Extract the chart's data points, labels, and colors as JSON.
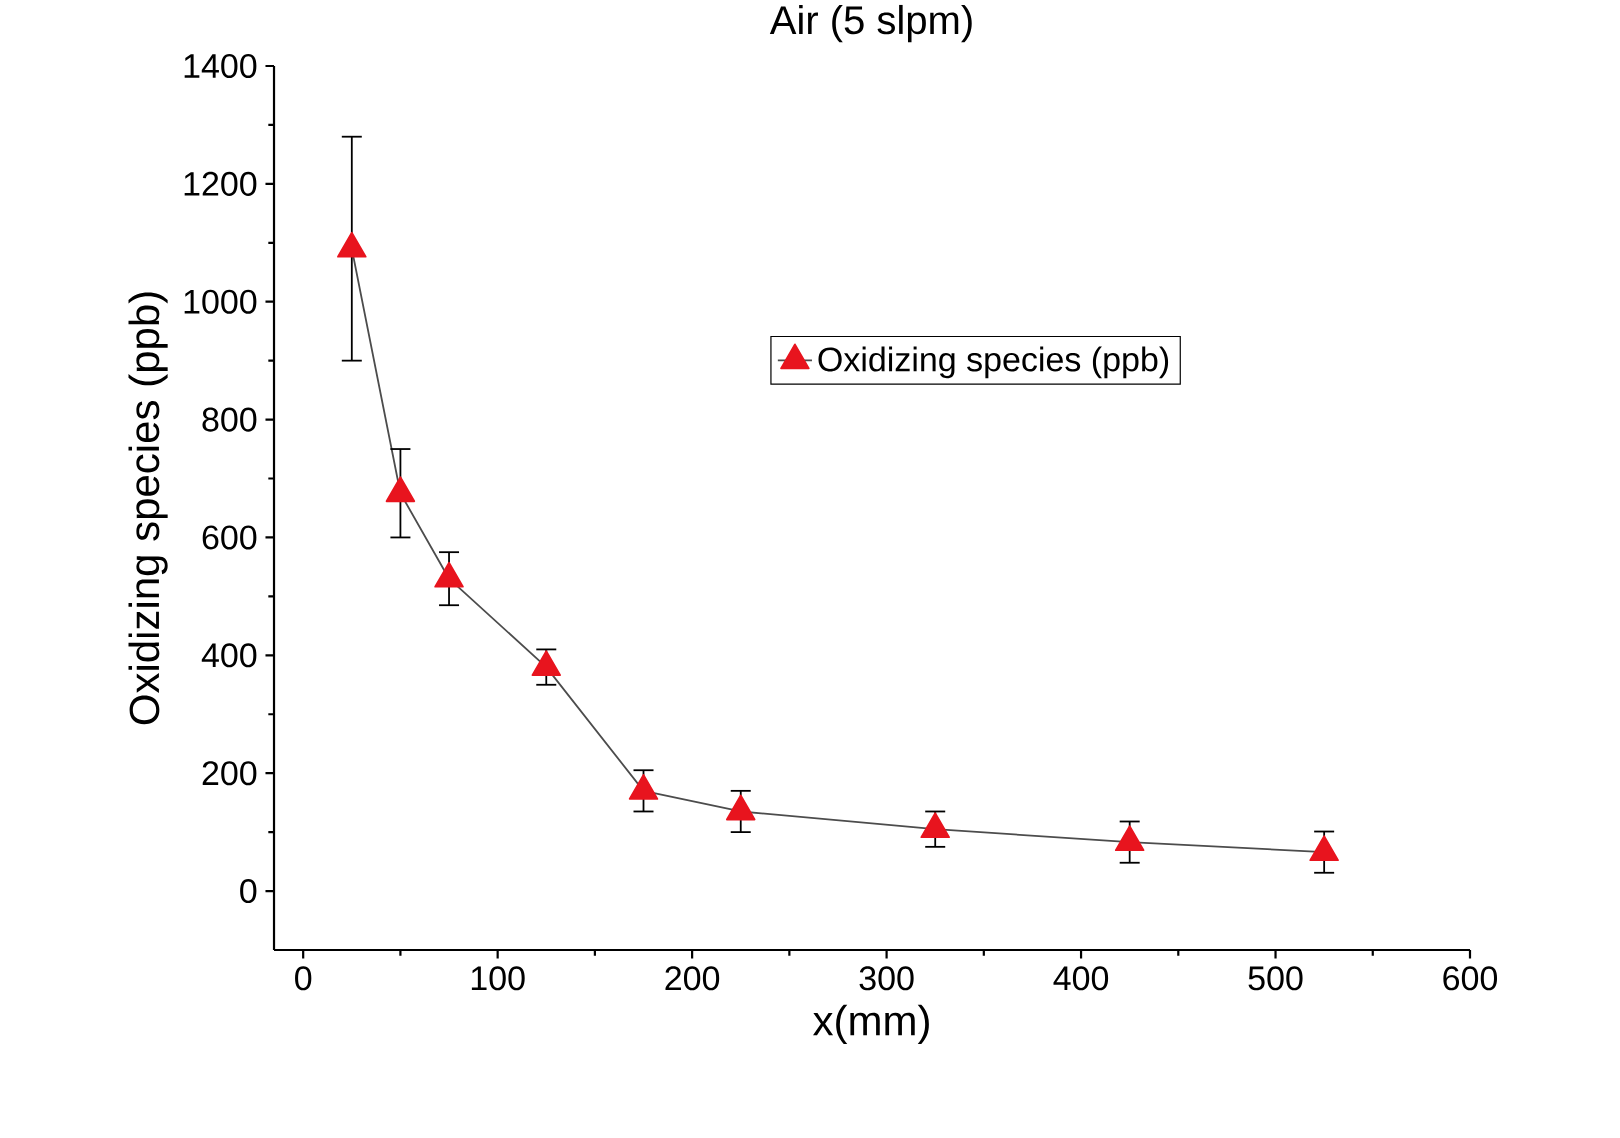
{
  "chart_data": {
    "type": "line",
    "title": "Air (5 slpm)",
    "xlabel": "x(mm)",
    "ylabel": "Oxidizing  species (ppb)",
    "x": [
      25,
      50,
      75,
      125,
      175,
      225,
      325,
      425,
      525
    ],
    "series": [
      {
        "name": "Oxidizing species (ppb)",
        "color": "#e8141e",
        "values": [
          1090,
          675,
          530,
          380,
          170,
          135,
          105,
          83,
          66
        ],
        "errors": [
          190,
          75,
          45,
          30,
          35,
          35,
          30,
          35,
          35
        ]
      }
    ],
    "xlim": [
      -15,
      600
    ],
    "ylim": [
      -100,
      1400
    ],
    "xticks": [
      0,
      100,
      200,
      300,
      400,
      500,
      600
    ],
    "yticks": [
      0,
      200,
      400,
      600,
      800,
      1000,
      1200,
      1400
    ],
    "marker": "triangle",
    "line_style": "solid",
    "legend": "right",
    "grid": false
  }
}
